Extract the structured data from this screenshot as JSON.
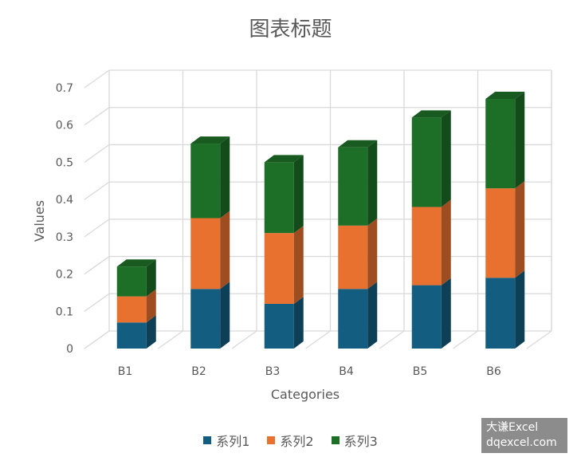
{
  "chart_data": {
    "type": "bar",
    "stacked": true,
    "style": "3d-column",
    "title": "图表标题",
    "xlabel": "Categories",
    "ylabel": "Values",
    "ylim": [
      0,
      0.7
    ],
    "yticks": [
      "0",
      "0.1",
      "0.2",
      "0.3",
      "0.4",
      "0.5",
      "0.6",
      "0.7"
    ],
    "categories": [
      "B1",
      "B2",
      "B3",
      "B4",
      "B5",
      "B6"
    ],
    "grid": true,
    "legend_position": "bottom",
    "series": [
      {
        "name": "系列1",
        "color": "#135d80",
        "values": [
          0.07,
          0.16,
          0.12,
          0.16,
          0.17,
          0.19
        ]
      },
      {
        "name": "系列2",
        "color": "#e8712f",
        "values": [
          0.07,
          0.19,
          0.19,
          0.17,
          0.21,
          0.24
        ]
      },
      {
        "name": "系列3",
        "color": "#1d6e26",
        "values": [
          0.08,
          0.2,
          0.19,
          0.21,
          0.24,
          0.24
        ]
      }
    ]
  },
  "watermark": {
    "line1": "大谦Excel",
    "line2": "dqexcel.com"
  }
}
